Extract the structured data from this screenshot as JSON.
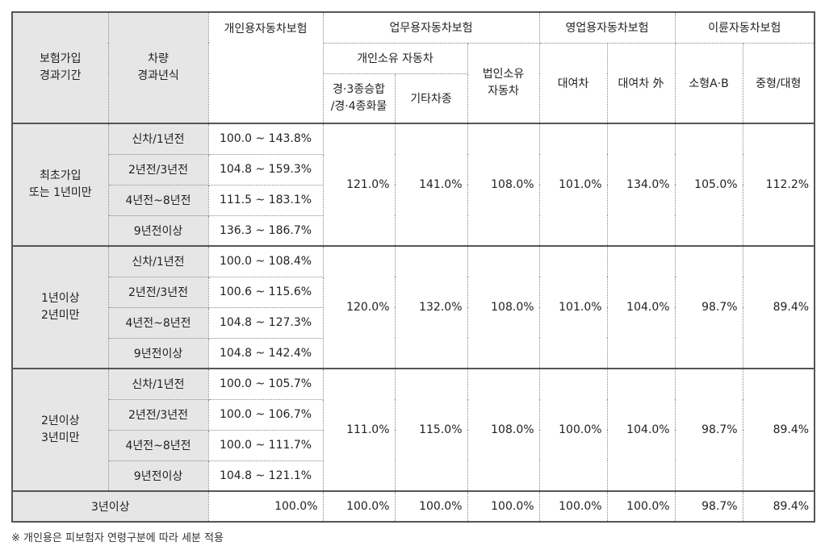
{
  "headers": {
    "period": "보험가입\n경과기간",
    "vehicle_age": "차량\n경과년식",
    "personal": "개인용자동차보험",
    "business": "업무용자동차보험",
    "individual_owned": "개인소유 자동차",
    "light_mid": "경·3종승합\n/경·4종화물",
    "other_vehicles": "기타차종",
    "corporate": "법인소유\n자동차",
    "commercial": "영업용자동차보험",
    "rental": "대여차",
    "non_rental": "대여차 外",
    "two_wheel": "이륜자동차보험",
    "small_ab": "소형A·B",
    "mid_large": "중형/대형"
  },
  "groups": [
    {
      "label": "최초가입\n또는 1년미만",
      "rows": [
        {
          "age": "신차/1년전",
          "personal": "100.0 ~ 143.8%"
        },
        {
          "age": "2년전/3년전",
          "personal": "104.8 ~ 159.3%"
        },
        {
          "age": "4년전~8년전",
          "personal": "111.5 ~ 183.1%"
        },
        {
          "age": "9년전이상",
          "personal": "136.3 ~ 186.7%"
        }
      ],
      "values": [
        "121.0%",
        "141.0%",
        "108.0%",
        "101.0%",
        "134.0%",
        "105.0%",
        "112.2%"
      ]
    },
    {
      "label": "1년이상\n2년미만",
      "rows": [
        {
          "age": "신차/1년전",
          "personal": "100.0 ~ 108.4%"
        },
        {
          "age": "2년전/3년전",
          "personal": "100.6 ~ 115.6%"
        },
        {
          "age": "4년전~8년전",
          "personal": "104.8 ~ 127.3%"
        },
        {
          "age": "9년전이상",
          "personal": "104.8 ~ 142.4%"
        }
      ],
      "values": [
        "120.0%",
        "132.0%",
        "108.0%",
        "101.0%",
        "104.0%",
        "98.7%",
        "89.4%"
      ]
    },
    {
      "label": "2년이상\n3년미만",
      "rows": [
        {
          "age": "신차/1년전",
          "personal": "100.0 ~ 105.7%"
        },
        {
          "age": "2년전/3년전",
          "personal": "100.0 ~ 106.7%"
        },
        {
          "age": "4년전~8년전",
          "personal": "100.0 ~ 111.7%"
        },
        {
          "age": "9년전이상",
          "personal": "104.8 ~ 121.1%"
        }
      ],
      "values": [
        "111.0%",
        "115.0%",
        "108.0%",
        "100.0%",
        "104.0%",
        "98.7%",
        "89.4%"
      ]
    }
  ],
  "last_row": {
    "label": "3년이상",
    "personal": "100.0%",
    "values": [
      "100.0%",
      "100.0%",
      "100.0%",
      "100.0%",
      "100.0%",
      "98.7%",
      "89.4%"
    ]
  },
  "footnote": "※ 개인용은 피보험자 연령구분에 따라 세분 적용"
}
